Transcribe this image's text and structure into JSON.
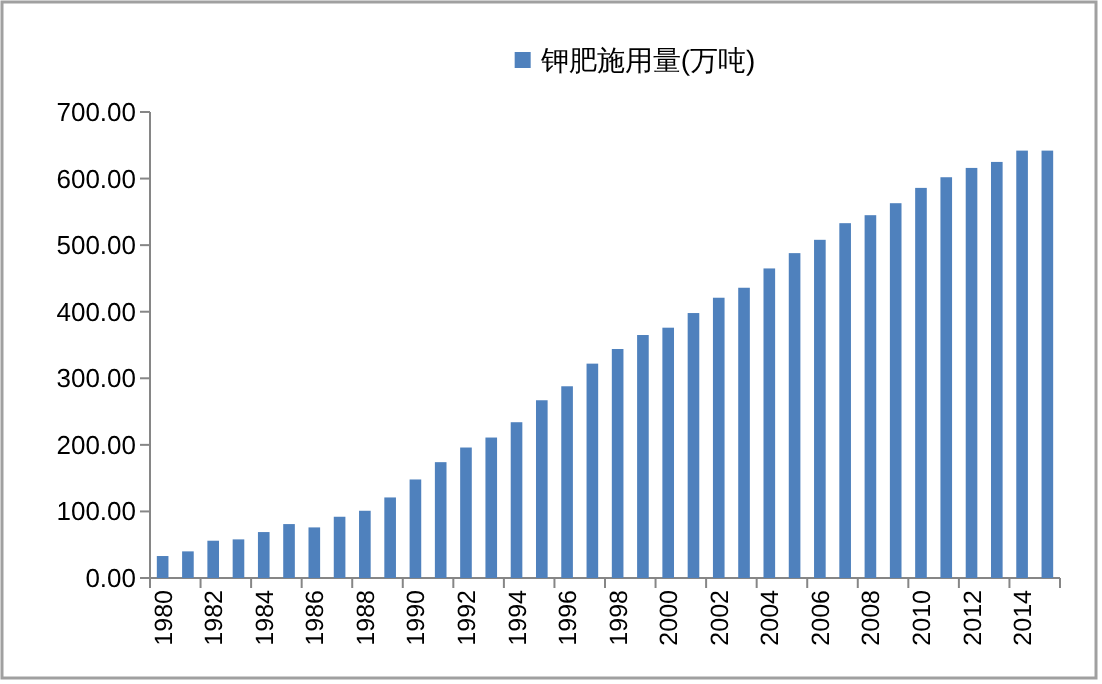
{
  "chart_data": {
    "type": "bar",
    "categories": [
      "1980",
      null,
      "1982",
      null,
      "1984",
      null,
      "1986",
      null,
      "1988",
      null,
      "1990",
      null,
      "1992",
      null,
      "1994",
      null,
      "1996",
      null,
      "1998",
      null,
      "2000",
      null,
      "2002",
      null,
      "2004",
      null,
      "2006",
      null,
      "2008",
      null,
      "2010",
      null,
      "2012",
      null,
      "2014",
      null
    ],
    "series": [
      {
        "name": "钾肥施用量(万吨)",
        "color": "#4f81bd",
        "values": [
          33,
          40,
          56,
          58,
          69,
          81,
          76,
          92,
          101,
          121,
          148,
          174,
          196,
          211,
          234,
          267,
          288,
          322,
          344,
          365,
          376,
          398,
          421,
          436,
          465,
          488,
          508,
          533,
          545,
          563,
          586,
          602,
          616,
          625,
          642,
          642
        ]
      }
    ],
    "ylim": [
      0,
      700
    ],
    "yticks": [
      {
        "value": 0,
        "label": "0.00"
      },
      {
        "value": 100,
        "label": "100.00"
      },
      {
        "value": 200,
        "label": "200.00"
      },
      {
        "value": 300,
        "label": "300.00"
      },
      {
        "value": 400,
        "label": "400.00"
      },
      {
        "value": 500,
        "label": "500.00"
      },
      {
        "value": 600,
        "label": "600.00"
      },
      {
        "value": 700,
        "label": "700.00"
      }
    ],
    "legend": "top",
    "grid": false
  }
}
